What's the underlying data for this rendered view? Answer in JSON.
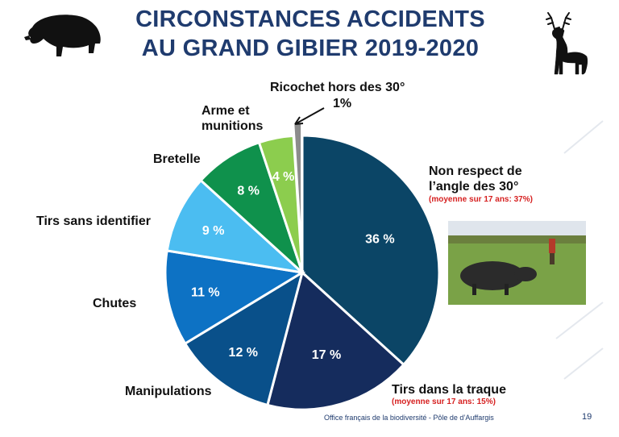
{
  "title": {
    "line1": "CIRCONSTANCES ACCIDENTS",
    "line2": "AU GRAND GIBIER 2019-2020"
  },
  "chart_data": {
    "type": "pie",
    "title": "CIRCONSTANCES ACCIDENTS AU GRAND GIBIER 2019-2020",
    "unit": "%",
    "slices": [
      {
        "label": "Non respect de l’angle des 30°",
        "value": 36,
        "display": "36 %",
        "color": "#0b4566",
        "note": "(moyenne sur 17 ans: 37%)"
      },
      {
        "label": "Tirs dans la traque",
        "value": 17,
        "display": "17 %",
        "color": "#152c5d",
        "note": "(moyenne sur 17 ans: 15%)"
      },
      {
        "label": "Manipulations",
        "value": 12,
        "display": "12 %",
        "color": "#09508a"
      },
      {
        "label": "Chutes",
        "value": 11,
        "display": "11 %",
        "color": "#0d72c4"
      },
      {
        "label": "Tirs sans identifier",
        "value": 9,
        "display": "9 %",
        "color": "#4bbdf1"
      },
      {
        "label": "Bretelle",
        "value": 8,
        "display": "8 %",
        "color": "#0f914c"
      },
      {
        "label": "Arme et munitions",
        "value": 4,
        "display": "4 %",
        "color": "#8ccd4e"
      },
      {
        "label": "Ricochet hors des 30°",
        "value": 1,
        "display": "1%",
        "color": "#8c8c8c",
        "exploded": true
      }
    ]
  },
  "labels": {
    "non_respect_1": "Non respect de",
    "non_respect_2": "l’angle des 30°",
    "non_respect_note": "(moyenne sur 17 ans: 37%)",
    "tirs_traque": "Tirs dans la traque",
    "tirs_traque_note": "(moyenne sur 17 ans: 15%)",
    "manipulations": "Manipulations",
    "chutes": "Chutes",
    "tirs_sans": "Tirs sans identifier",
    "bretelle": "Bretelle",
    "arme_1": "Arme et",
    "arme_2": "munitions",
    "ricochet": "Ricochet hors des 30°",
    "ricochet_value": "1%"
  },
  "footer": {
    "text": "Office français de la biodiversité  -  Pôle de d’Auffargis",
    "page": "19"
  },
  "icons": {
    "left": "wild-boar-silhouette-icon",
    "right": "deer-silhouette-icon",
    "photo": "wild-boar-photo"
  }
}
